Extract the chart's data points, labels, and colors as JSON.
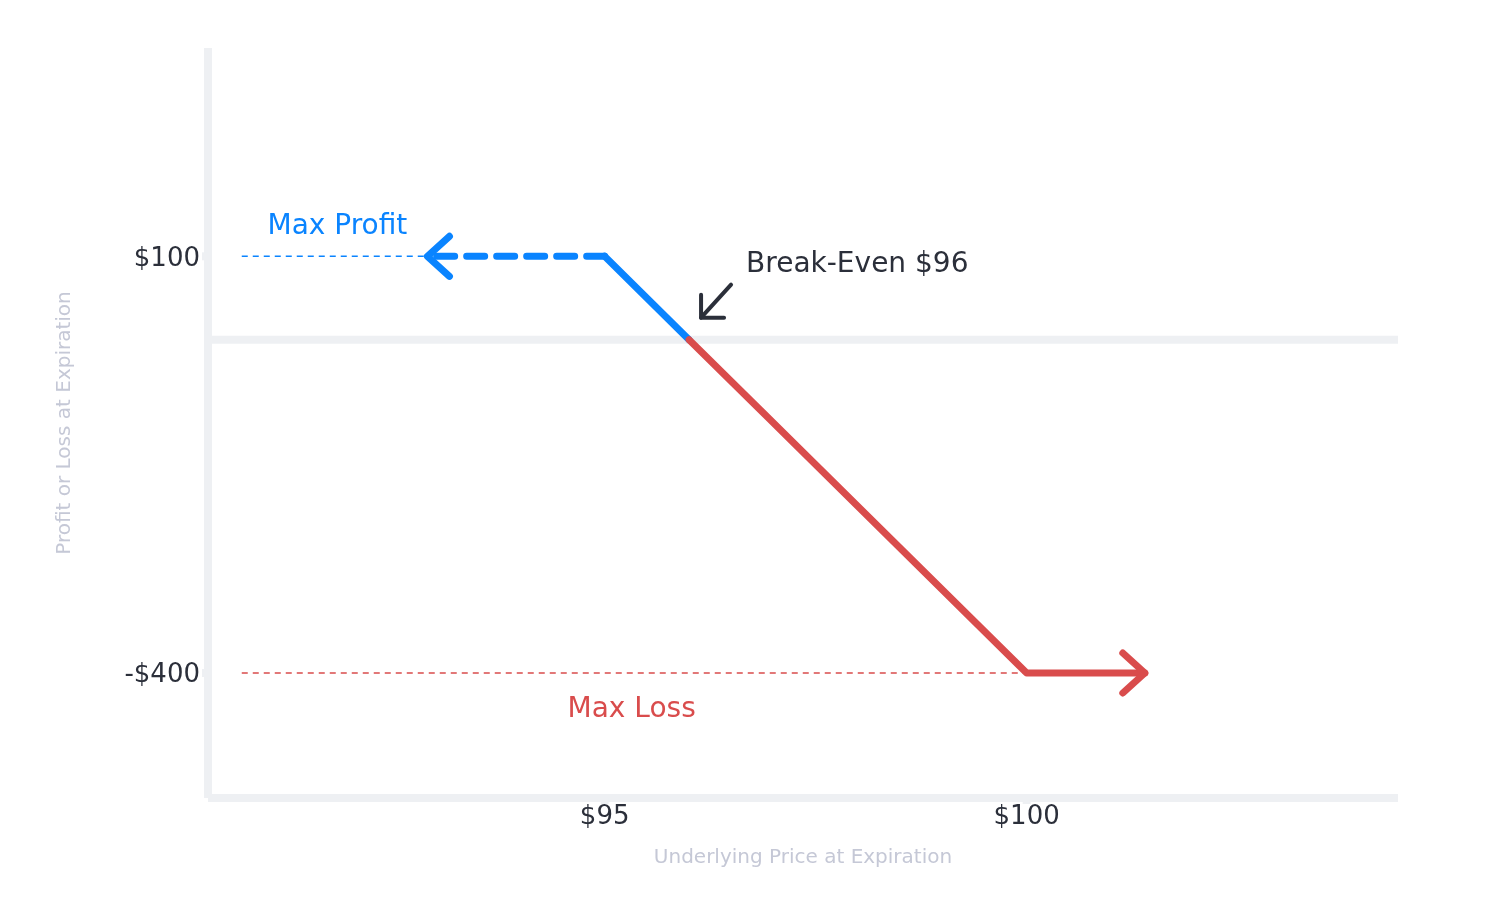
{
  "chart_data": {
    "type": "line",
    "xlabel": "Underlying Price at Expiration",
    "ylabel": "Profit or Loss at Expiration",
    "xlim": [
      90.3,
      104.4
    ],
    "ylim": [
      -550,
      350
    ],
    "xticks": [
      {
        "value": 95,
        "label": "$95"
      },
      {
        "value": 100,
        "label": "$100"
      }
    ],
    "yticks": [
      {
        "value": 100,
        "label": "$100"
      },
      {
        "value": -400,
        "label": "-$400"
      }
    ],
    "series": [
      {
        "color": "#0a84ff",
        "x": [
          92.9,
          95
        ],
        "values": [
          100,
          100
        ],
        "line_style": "dashed"
      },
      {
        "color": "#0a84ff",
        "x": [
          95,
          96
        ],
        "values": [
          100,
          0
        ]
      },
      {
        "color": "#d94c4c",
        "x": [
          96,
          100,
          101.4
        ],
        "values": [
          0,
          -400,
          -400
        ]
      },
      {
        "name": "Max Profit",
        "color": "#0a84ff",
        "x": [
          90.7,
          92.9
        ],
        "values": [
          100,
          100
        ],
        "line_style": "dashed"
      },
      {
        "name": "Max Loss",
        "color": "#d94c4c",
        "x": [
          90.7,
          100
        ],
        "values": [
          -400,
          -400
        ],
        "line_style": "dashed"
      }
    ],
    "ref_lines": [
      {
        "axis": "y",
        "value": 0,
        "color": "#eef0f3"
      }
    ],
    "annotations": [
      {
        "text": "Break-Even $96",
        "x": 96,
        "y": 0
      }
    ]
  }
}
